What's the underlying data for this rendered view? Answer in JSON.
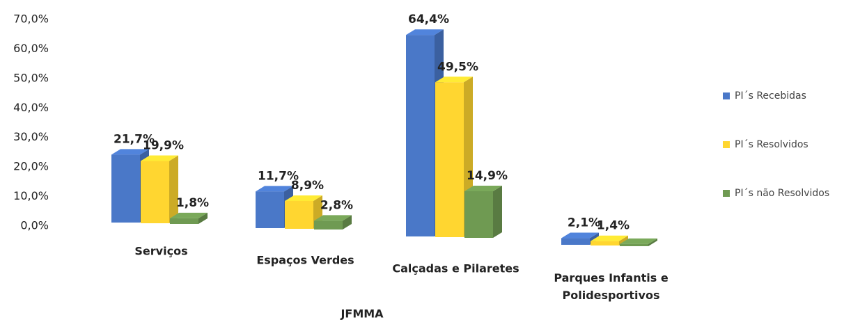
{
  "chart_data": {
    "type": "bar3d",
    "x_label": "JFMMA",
    "categories": [
      "Serviços",
      "Espaços Verdes",
      "Calçadas e Pilaretes",
      "Parques Infantis e Polidesportivos"
    ],
    "series": [
      {
        "name": "PI´s Recebidas",
        "color": "#4a78c8",
        "values": [
          21.7,
          11.7,
          64.4,
          2.1
        ],
        "value_labels": [
          "21,7%",
          "11,7%",
          "64,4%",
          "2,1%"
        ]
      },
      {
        "name": "PI´s Resolvidos",
        "color": "#ffd630",
        "values": [
          19.9,
          8.9,
          49.5,
          1.4
        ],
        "value_labels": [
          "19,9%",
          "8,9%",
          "49,5%",
          "1,4%"
        ]
      },
      {
        "name": "PI´s não Resolvidos",
        "color": "#6f9a52",
        "values": [
          1.8,
          2.8,
          14.9,
          0.7
        ],
        "value_labels": [
          "1,8%",
          "2,8%",
          "14,9%",
          null
        ]
      }
    ],
    "ylim": [
      0,
      70
    ],
    "yticks": [
      {
        "value": 0,
        "label": "0,0%"
      },
      {
        "value": 10,
        "label": "10,0%"
      },
      {
        "value": 20,
        "label": "20,0%"
      },
      {
        "value": 30,
        "label": "30,0%"
      },
      {
        "value": 40,
        "label": "40,0%"
      },
      {
        "value": 50,
        "label": "50,0%"
      },
      {
        "value": 60,
        "label": "60,0%"
      },
      {
        "value": 70,
        "label": "70,0%"
      }
    ],
    "legend": "right"
  }
}
